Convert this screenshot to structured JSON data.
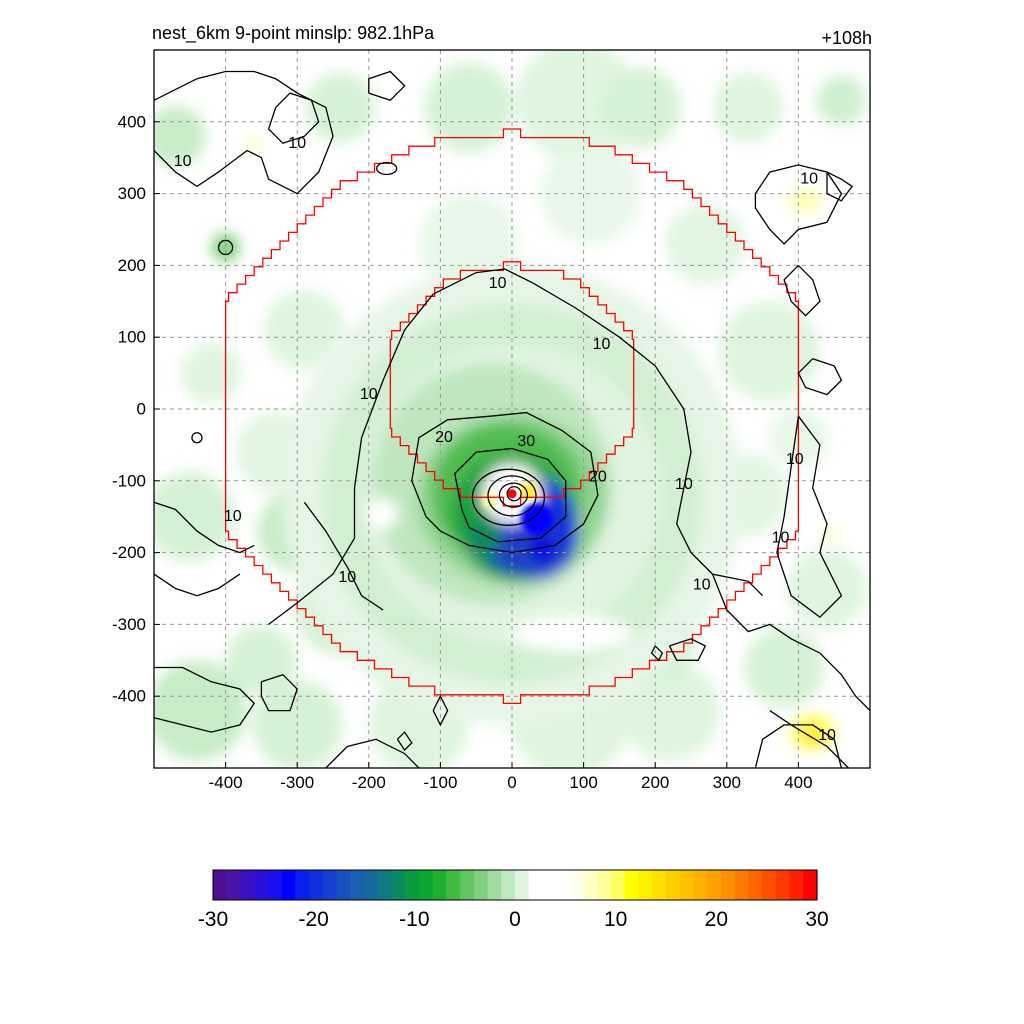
{
  "header": {
    "title_left": "nest_6km  9-point minslp: 982.1hPa",
    "title_right": "+108h"
  },
  "chart_data": {
    "type": "heatmap",
    "title": "nest_6km  9-point minslp: 982.1hPa",
    "time_label": "+108h",
    "xlabel": "",
    "ylabel": "",
    "xlim": [
      -500,
      500
    ],
    "ylim": [
      -500,
      500
    ],
    "x_ticks": [
      -400,
      -300,
      -200,
      -100,
      0,
      100,
      200,
      300,
      400
    ],
    "y_ticks": [
      400,
      300,
      200,
      100,
      0,
      -100,
      -200,
      -300,
      -400
    ],
    "x_tick_labels": [
      "-400",
      "-300",
      "-200",
      "-100",
      "0",
      "100",
      "200",
      "300",
      "400"
    ],
    "y_tick_labels": [
      "400",
      "300",
      "200",
      "100",
      "0",
      "-100",
      "-200",
      "-300",
      "-400"
    ],
    "grid": true,
    "center": {
      "x": 0,
      "y": -118
    },
    "contour_levels": [
      10,
      20,
      30
    ],
    "contour_labels": [
      {
        "text": "10",
        "x": -460,
        "y": 345
      },
      {
        "text": "10",
        "x": -300,
        "y": 370
      },
      {
        "text": "10",
        "x": -20,
        "y": 175
      },
      {
        "text": "10",
        "x": 125,
        "y": 90
      },
      {
        "text": "10",
        "x": -200,
        "y": 20
      },
      {
        "text": "20",
        "x": -95,
        "y": -40
      },
      {
        "text": "30",
        "x": 20,
        "y": -45
      },
      {
        "text": "20",
        "x": 120,
        "y": -95
      },
      {
        "text": "10",
        "x": 240,
        "y": -105
      },
      {
        "text": "10",
        "x": 265,
        "y": -245
      },
      {
        "text": "10",
        "x": -390,
        "y": -150
      },
      {
        "text": "10",
        "x": -230,
        "y": -235
      },
      {
        "text": "10",
        "x": 415,
        "y": 320
      },
      {
        "text": "10",
        "x": 395,
        "y": -70
      },
      {
        "text": "10",
        "x": 375,
        "y": -180
      },
      {
        "text": "10",
        "x": 440,
        "y": -455
      }
    ],
    "colorbar": {
      "min": -30,
      "max": 30,
      "ticks": [
        -30,
        -20,
        -10,
        0,
        10,
        20,
        30
      ],
      "tick_labels": [
        "-30",
        "-20",
        "-10",
        "0",
        "10",
        "20",
        "30"
      ],
      "colors": [
        "#4b0f8f",
        "#4a14a8",
        "#3c10c0",
        "#2a10d8",
        "#1a10ee",
        "#0000ff",
        "#0a20f0",
        "#1030e0",
        "#1540d0",
        "#1850c0",
        "#1a5fb0",
        "#166a9a",
        "#0f7a80",
        "#0a8a60",
        "#0a9a40",
        "#0aa830",
        "#20b030",
        "#40bb40",
        "#60c560",
        "#80d080",
        "#a0dca0",
        "#c0e8c0",
        "#dff3df",
        "#ffffff",
        "#ffffff",
        "#ffffff",
        "#fffff0",
        "#ffffc8",
        "#ffff9a",
        "#ffff60",
        "#ffff00",
        "#fff000",
        "#ffe000",
        "#ffd000",
        "#ffc000",
        "#ffb000",
        "#ffa000",
        "#ff9000",
        "#ff7a00",
        "#ff6600",
        "#ff5000",
        "#ff3a00",
        "#ff2000",
        "#ff0000"
      ]
    },
    "overlay": {
      "color": "#ff0000",
      "radii_km": [
        170,
        400
      ]
    },
    "colors": {
      "contour": "#000000",
      "grid": "#999999",
      "domain_box": "#ff0000",
      "center_marker": "#ff0000"
    }
  }
}
